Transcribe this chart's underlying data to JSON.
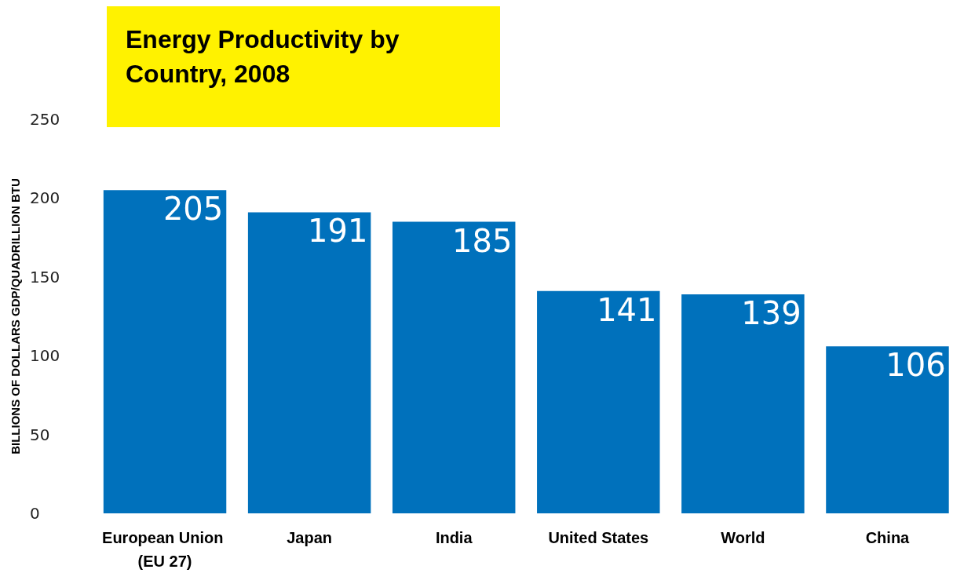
{
  "chart_data": {
    "type": "bar",
    "title": "Energy Productivity by Country, 2008",
    "ylabel": "BILLIONS OF DOLLARS GDP/QUADRILLION BTU",
    "categories": [
      "European Union (EU 27)",
      "Japan",
      "India",
      "United States",
      "World",
      "China"
    ],
    "values": [
      205,
      191,
      185,
      141,
      139,
      106
    ],
    "color": "#0071bc",
    "ylim": [
      0,
      250
    ],
    "yticks": [
      0,
      50,
      100,
      150,
      200,
      250
    ],
    "grid": false,
    "data_labels": true
  }
}
